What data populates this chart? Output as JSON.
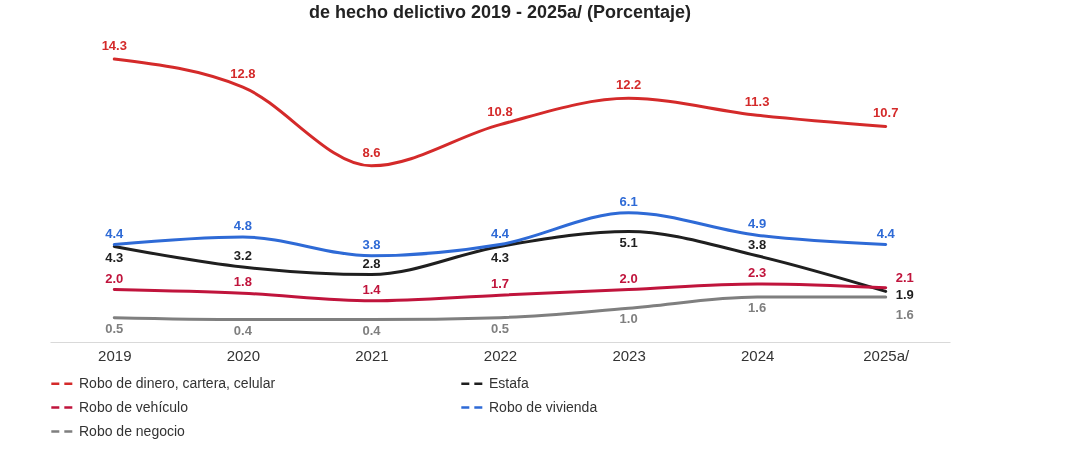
{
  "chart_data": {
    "type": "line",
    "title": "de hecho delictivo 2019 - 2025a/ (Porcentaje)",
    "categories": [
      "2019",
      "2020",
      "2021",
      "2022",
      "2023",
      "2024",
      "2025a/"
    ],
    "series": [
      {
        "name": "Robo de dinero, cartera, celular",
        "color": "#d42a2a",
        "values": [
          14.3,
          12.8,
          8.6,
          10.8,
          12.2,
          11.3,
          10.7
        ],
        "value_labels": [
          "14.3",
          "12.8",
          "8.6",
          "10.8",
          "12.2",
          "11.3",
          "10.7"
        ]
      },
      {
        "name": "Estafa",
        "color": "#1f1f1f",
        "values": [
          4.3,
          3.2,
          2.8,
          4.3,
          5.1,
          3.8,
          1.9
        ],
        "value_labels": [
          "4.3",
          "3.2",
          "2.8",
          "4.3",
          "5.1",
          "3.8",
          "1.9"
        ]
      },
      {
        "name": "Robo de vehículo",
        "color": "#c0143c",
        "values": [
          2.0,
          1.8,
          1.4,
          1.7,
          2.0,
          2.3,
          2.1
        ],
        "value_labels": [
          "2.0",
          "1.8",
          "1.4",
          "1.7",
          "2.0",
          "2.3",
          "2.1"
        ]
      },
      {
        "name": "Robo de vivienda",
        "color": "#2e6ad6",
        "values": [
          4.4,
          4.8,
          3.8,
          4.4,
          6.1,
          4.9,
          4.4
        ],
        "value_labels": [
          "4.4",
          "4.8",
          "3.8",
          "4.4",
          "6.1",
          "4.9",
          "4.4"
        ]
      },
      {
        "name": "Robo de negocio",
        "color": "#7f7f7f",
        "values": [
          0.5,
          0.4,
          0.4,
          0.5,
          1.0,
          1.6,
          1.6
        ],
        "value_labels": [
          "0.5",
          "0.4",
          "0.4",
          "0.5",
          "1.0",
          "1.6",
          "1.6"
        ]
      }
    ],
    "legend": "bottom",
    "line_style": "solid",
    "marker": "none",
    "grid": false,
    "tick_labels": "x"
  }
}
